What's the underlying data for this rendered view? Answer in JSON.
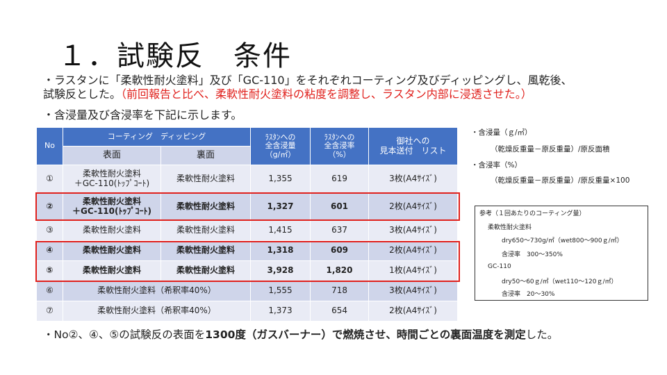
{
  "title": "１．試験反　条件",
  "intro": {
    "line1": "・ラスタンに「柔軟性耐火塗料」及び「GC-110」をそれぞれコーティング及びディッピングし、風乾後、",
    "line2_black": "試験反とした。",
    "line2_red": "（前回報告と比べ、柔軟性耐火塗料の粘度を調整し、ラスタン内部に浸透させた。）",
    "line3": "・含浸量及び含浸率を下記に示します。"
  },
  "table": {
    "headers": {
      "no": "No",
      "coating": "コーティング　ディッピング",
      "front": "表面",
      "back": "裏面",
      "amount": [
        "ﾗｽﾀﾝへの",
        "全含浸量",
        "（g/㎡）"
      ],
      "rate": [
        "ﾗｽﾀﾝへの",
        "全含浸率",
        "（%）"
      ],
      "sample": [
        "御社への",
        "見本送付　リスト"
      ]
    },
    "rows": [
      {
        "no": "①",
        "front": [
          "柔軟性耐火塗料",
          "＋GC-110(ﾄｯﾌﾟｺｰﾄ)"
        ],
        "back": "柔軟性耐火塗料",
        "amount": "1,355",
        "rate": "619",
        "sample": "3枚(A4ｻｲｽﾞ)"
      },
      {
        "no": "②",
        "front": [
          "柔軟性耐火塗料",
          "＋GC-110(ﾄｯﾌﾟｺｰﾄ)"
        ],
        "back": "柔軟性耐火塗料",
        "amount": "1,327",
        "rate": "601",
        "sample": "2枚(A4ｻｲｽﾞ)"
      },
      {
        "no": "③",
        "front": [
          "柔軟性耐火塗料"
        ],
        "back": "柔軟性耐火塗料",
        "amount": "1,415",
        "rate": "637",
        "sample": "3枚(A4ｻｲｽﾞ)"
      },
      {
        "no": "④",
        "front": [
          "柔軟性耐火塗料"
        ],
        "back": "柔軟性耐火塗料",
        "amount": "1,318",
        "rate": "609",
        "sample": "2枚(A4ｻｲｽﾞ)"
      },
      {
        "no": "⑤",
        "front": [
          "柔軟性耐火塗料"
        ],
        "back": "柔軟性耐火塗料",
        "amount": "3,928",
        "rate": "1,820",
        "sample": "1枚(A4ｻｲｽﾞ)"
      },
      {
        "no": "⑥",
        "merged": "柔軟性耐火塗料（希釈率40%）",
        "amount": "1,555",
        "rate": "718",
        "sample": "3枚(A4ｻｲｽﾞ)"
      },
      {
        "no": "⑦",
        "merged": "柔軟性耐火塗料（希釈率40%）",
        "amount": "1,373",
        "rate": "654",
        "sample": "2枚(A4ｻｲｽﾞ)"
      }
    ]
  },
  "notes": {
    "n1": "・含浸量（ｇ/㎡）",
    "n2": "（乾燥反重量－原反重量）/原反面積",
    "n3": "・含浸率（%）",
    "n4": "（乾燥反重量－原反重量）/原反重量×100"
  },
  "reference": {
    "title": "参考（１回あたりのコーティング量）",
    "l1": "柔軟性耐火塗料",
    "l2": "dry650～730g/㎡（wet800～900ｇ/㎡）",
    "l3": "含浸率　300～350%",
    "l4": "GC-110",
    "l5": "dry50～60ｇ/㎡（wet110～120ｇ/㎡）",
    "l6": "含浸率　20～30%"
  },
  "footer": {
    "p1": "・No②、④、⑤の試験反の表面を",
    "p2": "1300度（ガスバーナー）で燃焼させ、時間ごとの裏面温度を測定",
    "p3": "した。"
  },
  "colors": {
    "header": "#4472c4",
    "row_light": "#e9ebf5",
    "row_dark": "#cfd5ea",
    "highlight": "#e0201c"
  }
}
